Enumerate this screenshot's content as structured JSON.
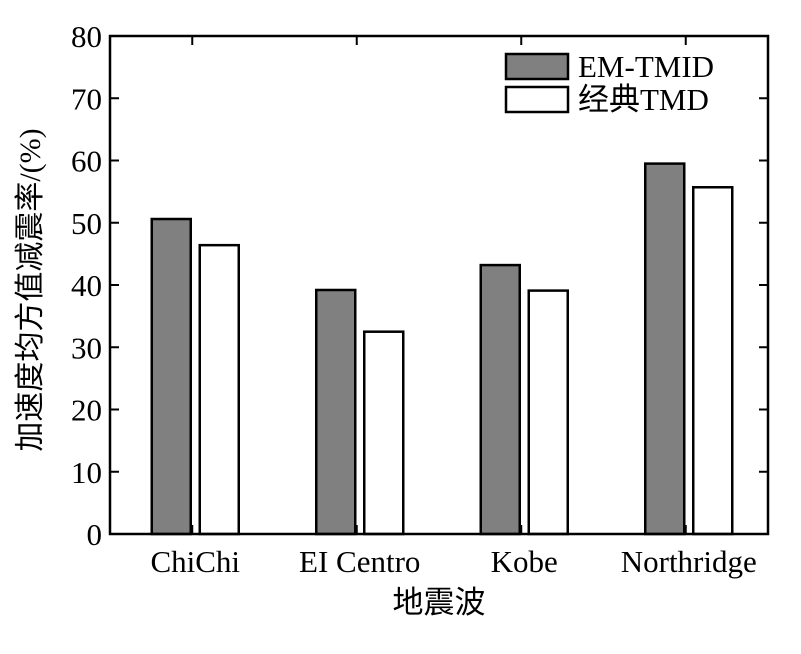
{
  "chart_data": {
    "type": "bar",
    "categories": [
      "ChiChi",
      "EI Centro",
      "Kobe",
      "Northridge"
    ],
    "series": [
      {
        "name": "EM-TMID",
        "values": [
          50.6,
          39.2,
          43.2,
          59.5
        ],
        "color": "#808080"
      },
      {
        "name": "经典TMD",
        "values": [
          46.4,
          32.5,
          39.1,
          55.7
        ],
        "color": "#ffffff"
      }
    ],
    "title": "",
    "xlabel": "地震波",
    "ylabel": "加速度均方值减震率/(%)",
    "ylim": [
      0,
      80
    ],
    "yticks": [
      0,
      10,
      20,
      30,
      40,
      50,
      60,
      70,
      80
    ],
    "grid": false,
    "legend_position": "top-right"
  }
}
